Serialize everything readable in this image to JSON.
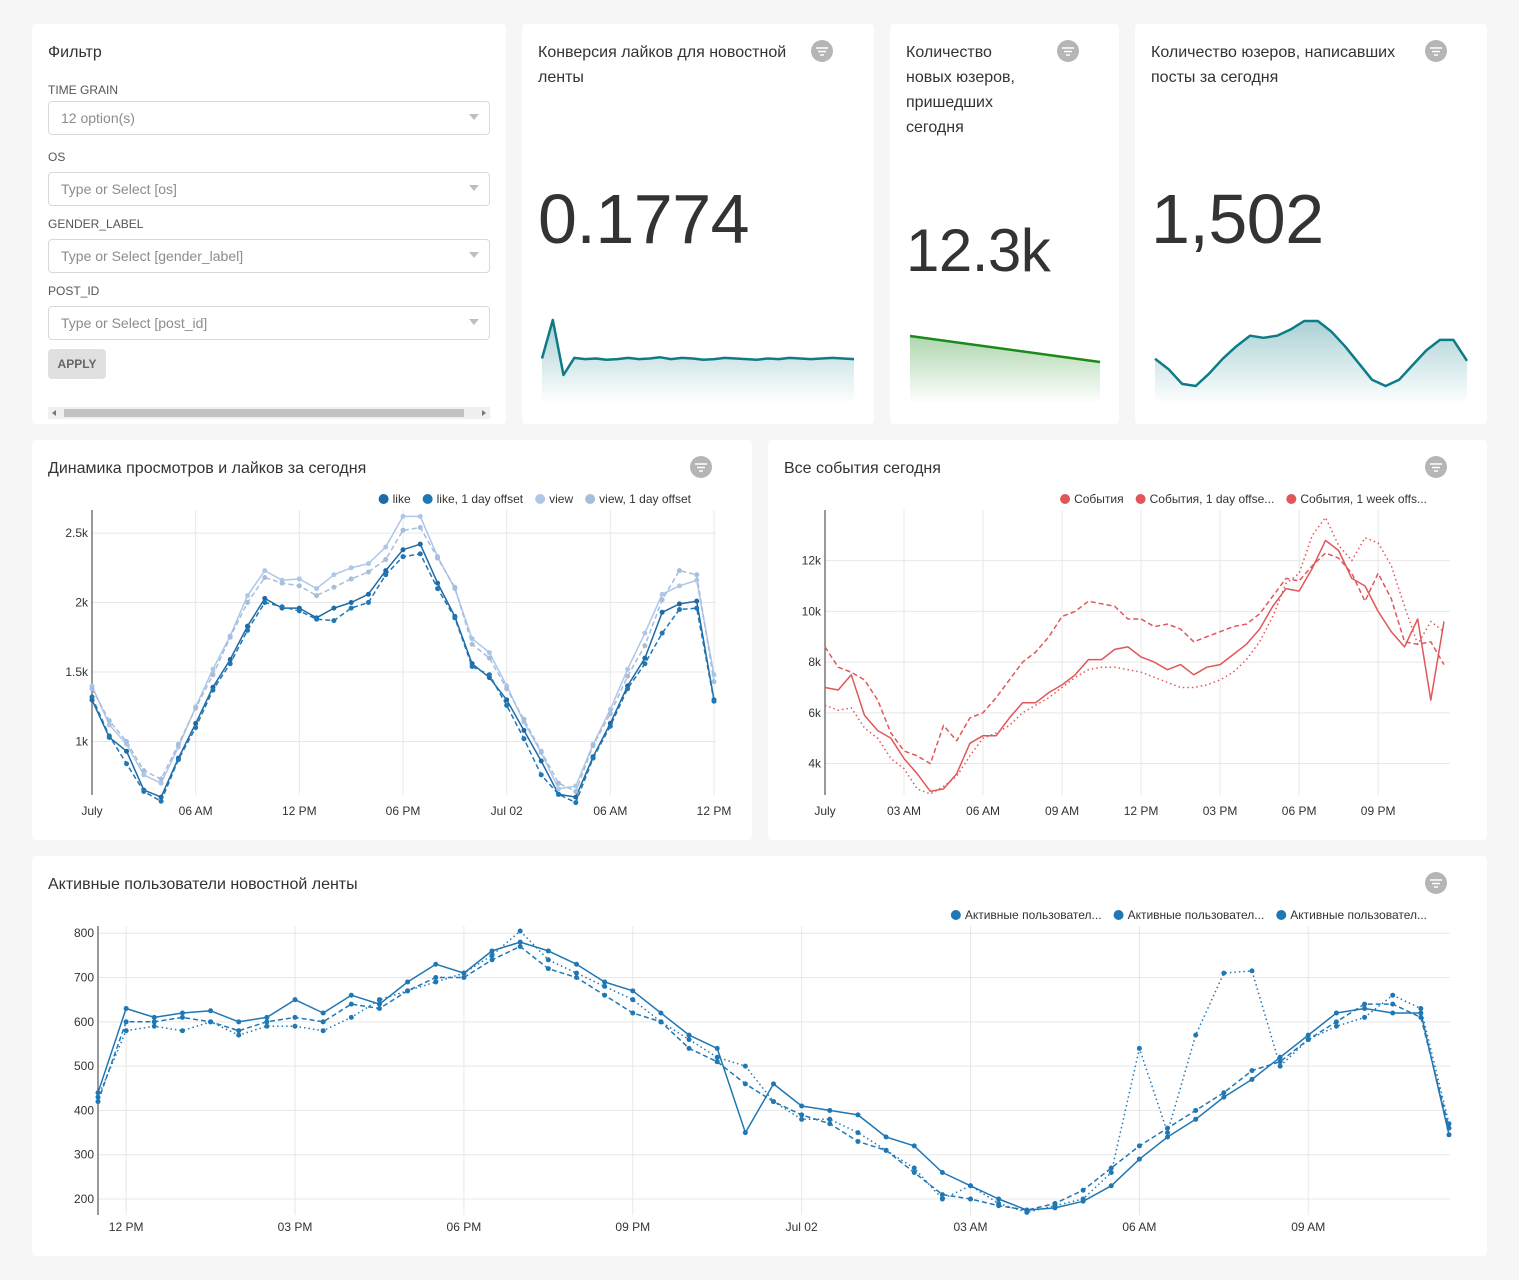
{
  "filter": {
    "title": "Фильтр",
    "fields": [
      {
        "label": "TIME GRAIN",
        "placeholder": "12 option(s)"
      },
      {
        "label": "OS",
        "placeholder": "Type or Select [os]"
      },
      {
        "label": "GENDER_LABEL",
        "placeholder": "Type or Select [gender_label]"
      },
      {
        "label": "POST_ID",
        "placeholder": "Type or Select [post_id]"
      }
    ],
    "button": "APPLY"
  },
  "chart_data": [
    {
      "type": "big_number",
      "title": "Конверсия лайков для новостной ленты",
      "value": 0.1774,
      "color": "#0e7c86",
      "trend": [
        0.177,
        0.24,
        0.15,
        0.178,
        0.176,
        0.177,
        0.175,
        0.176,
        0.178,
        0.176,
        0.177,
        0.179,
        0.176,
        0.178,
        0.177,
        0.175,
        0.176,
        0.178,
        0.177,
        0.176,
        0.175,
        0.177,
        0.176,
        0.178,
        0.177,
        0.176,
        0.177,
        0.178,
        0.177,
        0.176
      ]
    },
    {
      "type": "big_number",
      "title": "Количество новых юзеров, пришедших сегодня",
      "value": 12300,
      "value_label": "12.3k",
      "color": "#1a8a1a",
      "trend": [
        13400,
        12300
      ]
    },
    {
      "type": "big_number",
      "title": "Количество юзеров, написавших посты за сегодня",
      "value": 1502,
      "value_label": "1,502",
      "color": "#0e7c86",
      "trend": [
        1300,
        1250,
        1180,
        1170,
        1230,
        1300,
        1360,
        1410,
        1400,
        1410,
        1440,
        1480,
        1480,
        1430,
        1360,
        1280,
        1200,
        1170,
        1200,
        1270,
        1340,
        1390,
        1390,
        1290
      ]
    },
    {
      "type": "line",
      "title": "Динамика просмотров и лайков за сегодня",
      "grid": true,
      "markers": true,
      "legend": "top-right",
      "categories": [
        "July",
        null,
        null,
        null,
        null,
        null,
        "06 AM",
        null,
        null,
        null,
        null,
        null,
        "12 PM",
        null,
        null,
        null,
        null,
        null,
        "06 PM",
        null,
        null,
        null,
        null,
        null,
        "Jul 02",
        null,
        null,
        null,
        null,
        null,
        "06 AM",
        null,
        null,
        null,
        null,
        null,
        "12 PM"
      ],
      "ylim": [
        615,
        2630
      ],
      "yticks": [
        {
          "value": 1000,
          "label": "1k"
        },
        {
          "value": 1500,
          "label": "1.5k"
        },
        {
          "value": 2000,
          "label": "2k"
        },
        {
          "value": 2500,
          "label": "2.5k"
        }
      ],
      "series": [
        {
          "name": "like",
          "color": "#1f6aa5",
          "style": "solid",
          "values": [
            1300,
            1030,
            930,
            650,
            600,
            880,
            1130,
            1390,
            1590,
            1830,
            2030,
            1960,
            1960,
            1890,
            1960,
            2000,
            2060,
            2230,
            2380,
            2420,
            2140,
            1900,
            1560,
            1460,
            1300,
            1080,
            860,
            620,
            600,
            890,
            1130,
            1400,
            1600,
            1930,
            1990,
            2010,
            1300
          ]
        },
        {
          "name": "like, 1 day offset",
          "color": "#1f77b4",
          "style": "dashed",
          "values": [
            1320,
            1040,
            840,
            640,
            570,
            870,
            1100,
            1370,
            1560,
            1800,
            2000,
            1970,
            1940,
            1880,
            1870,
            1960,
            2000,
            2200,
            2330,
            2350,
            2100,
            1890,
            1540,
            1480,
            1260,
            1020,
            760,
            620,
            560,
            880,
            1110,
            1380,
            1560,
            1780,
            1950,
            1960,
            1290
          ]
        },
        {
          "name": "view",
          "color": "#aec7e8",
          "style": "solid",
          "values": [
            1400,
            1120,
            980,
            760,
            700,
            960,
            1250,
            1520,
            1760,
            2050,
            2230,
            2160,
            2170,
            2100,
            2200,
            2250,
            2280,
            2400,
            2620,
            2620,
            2330,
            2100,
            1740,
            1640,
            1400,
            1140,
            920,
            660,
            680,
            980,
            1230,
            1520,
            1780,
            2060,
            2120,
            2160,
            1480
          ]
        },
        {
          "name": "view, 1 day offset",
          "color": "#a6bddb",
          "style": "dashed",
          "values": [
            1380,
            1150,
            1000,
            790,
            730,
            980,
            1240,
            1480,
            1750,
            2000,
            2180,
            2140,
            2120,
            2050,
            2110,
            2170,
            2220,
            2310,
            2520,
            2540,
            2320,
            2110,
            1700,
            1600,
            1380,
            1160,
            930,
            700,
            640,
            970,
            1200,
            1470,
            1690,
            2020,
            2230,
            2200,
            1430
          ]
        }
      ]
    },
    {
      "type": "line",
      "title": "Все события сегодня",
      "grid": true,
      "markers": false,
      "legend": "top-right",
      "categories": [
        "July",
        null,
        null,
        null,
        null,
        null,
        "03 AM",
        null,
        null,
        null,
        null,
        null,
        "06 AM",
        null,
        null,
        null,
        null,
        null,
        "09 AM",
        null,
        null,
        null,
        null,
        null,
        "12 PM",
        null,
        null,
        null,
        null,
        null,
        "03 PM",
        null,
        null,
        null,
        null,
        null,
        "06 PM",
        null,
        null,
        null,
        null,
        null,
        "09 PM",
        null,
        null,
        null,
        null,
        null
      ],
      "ylim": [
        2760,
        13800
      ],
      "yticks": [
        {
          "value": 4000,
          "label": "4k"
        },
        {
          "value": 6000,
          "label": "6k"
        },
        {
          "value": 8000,
          "label": "8k"
        },
        {
          "value": 10000,
          "label": "10k"
        },
        {
          "value": 12000,
          "label": "12k"
        }
      ],
      "series": [
        {
          "name": "События",
          "color": "#e15759",
          "style": "solid",
          "values": [
            7000,
            6900,
            7500,
            5900,
            5300,
            5000,
            4200,
            3600,
            2900,
            3000,
            3600,
            4800,
            5100,
            5100,
            5800,
            6400,
            6400,
            6800,
            7100,
            7500,
            8100,
            8100,
            8500,
            8600,
            8200,
            8000,
            7700,
            7900,
            7500,
            7800,
            7900,
            8300,
            8700,
            9300,
            10200,
            10900,
            10800,
            11700,
            12800,
            12400,
            11300,
            11000,
            10000,
            9200,
            8600,
            9700,
            6500,
            9600
          ]
        },
        {
          "name": "События, 1 day offse...",
          "color": "#e15759",
          "style": "dashed",
          "values": [
            8600,
            7800,
            7600,
            7300,
            6500,
            5200,
            4500,
            4300,
            4000,
            5500,
            4900,
            5800,
            6000,
            6600,
            7300,
            8000,
            8400,
            9000,
            9800,
            10000,
            10400,
            10300,
            10200,
            9700,
            9700,
            9400,
            9500,
            9300,
            8800,
            9000,
            9200,
            9400,
            9500,
            9900,
            10600,
            11300,
            11200,
            11800,
            12300,
            12100,
            11500,
            10400,
            11500,
            10500,
            8800,
            8700,
            8800,
            7900
          ]
        },
        {
          "name": "События, 1 week offs...",
          "color": "#e15759",
          "style": "dotted",
          "values": [
            6300,
            6100,
            6200,
            5400,
            5000,
            4200,
            3800,
            3000,
            2800,
            3100,
            3500,
            4300,
            5000,
            5200,
            5500,
            6000,
            6300,
            6600,
            7000,
            7400,
            7700,
            7800,
            7800,
            7700,
            7600,
            7400,
            7200,
            7000,
            7000,
            7100,
            7300,
            7600,
            8100,
            8800,
            9800,
            11100,
            11500,
            13000,
            13700,
            12600,
            12000,
            12900,
            12700,
            11800,
            10200,
            8700,
            9600,
            9200
          ]
        }
      ]
    },
    {
      "type": "line",
      "title": "Активные пользователи новостной ленты",
      "grid": true,
      "markers": true,
      "legend": "top-right",
      "categories": [
        null,
        "12 PM",
        null,
        null,
        null,
        null,
        null,
        "03 PM",
        null,
        null,
        null,
        null,
        null,
        "06 PM",
        null,
        null,
        null,
        null,
        null,
        "09 PM",
        null,
        null,
        null,
        null,
        null,
        "Jul 02",
        null,
        null,
        null,
        null,
        null,
        "03 AM",
        null,
        null,
        null,
        null,
        null,
        "06 AM",
        null,
        null,
        null,
        null,
        null,
        "09 AM",
        null,
        null,
        null,
        null,
        null
      ],
      "ylim": [
        164,
        805
      ],
      "yticks": [
        200,
        300,
        400,
        500,
        600,
        700,
        800
      ],
      "series": [
        {
          "name": "Активные пользовател...",
          "color": "#1f77b4",
          "style": "solid",
          "values": [
            440,
            630,
            610,
            620,
            625,
            600,
            610,
            650,
            620,
            660,
            640,
            690,
            730,
            710,
            760,
            780,
            760,
            730,
            690,
            670,
            620,
            570,
            540,
            350,
            460,
            410,
            400,
            390,
            340,
            320,
            260,
            230,
            200,
            175,
            180,
            195,
            230,
            290,
            340,
            380,
            430,
            470,
            520,
            570,
            620,
            630,
            620,
            620,
            345
          ]
        },
        {
          "name": "Активные пользовател...",
          "color": "#1f77b4",
          "style": "dashed",
          "values": [
            420,
            600,
            600,
            610,
            600,
            580,
            600,
            610,
            600,
            640,
            630,
            670,
            700,
            700,
            740,
            770,
            720,
            700,
            660,
            620,
            600,
            540,
            510,
            460,
            420,
            390,
            370,
            330,
            310,
            260,
            210,
            200,
            185,
            175,
            190,
            220,
            270,
            320,
            360,
            400,
            440,
            490,
            510,
            560,
            600,
            640,
            640,
            610,
            360
          ]
        },
        {
          "name": "Активные пользовател...",
          "color": "#1f77b4",
          "style": "dotted",
          "values": [
            430,
            580,
            590,
            580,
            600,
            570,
            590,
            590,
            580,
            610,
            650,
            670,
            690,
            710,
            750,
            805,
            740,
            710,
            680,
            650,
            600,
            560,
            520,
            500,
            420,
            380,
            380,
            350,
            310,
            270,
            200,
            230,
            190,
            170,
            185,
            200,
            260,
            540,
            350,
            570,
            710,
            715,
            500,
            560,
            590,
            610,
            660,
            630,
            370
          ]
        }
      ]
    }
  ]
}
